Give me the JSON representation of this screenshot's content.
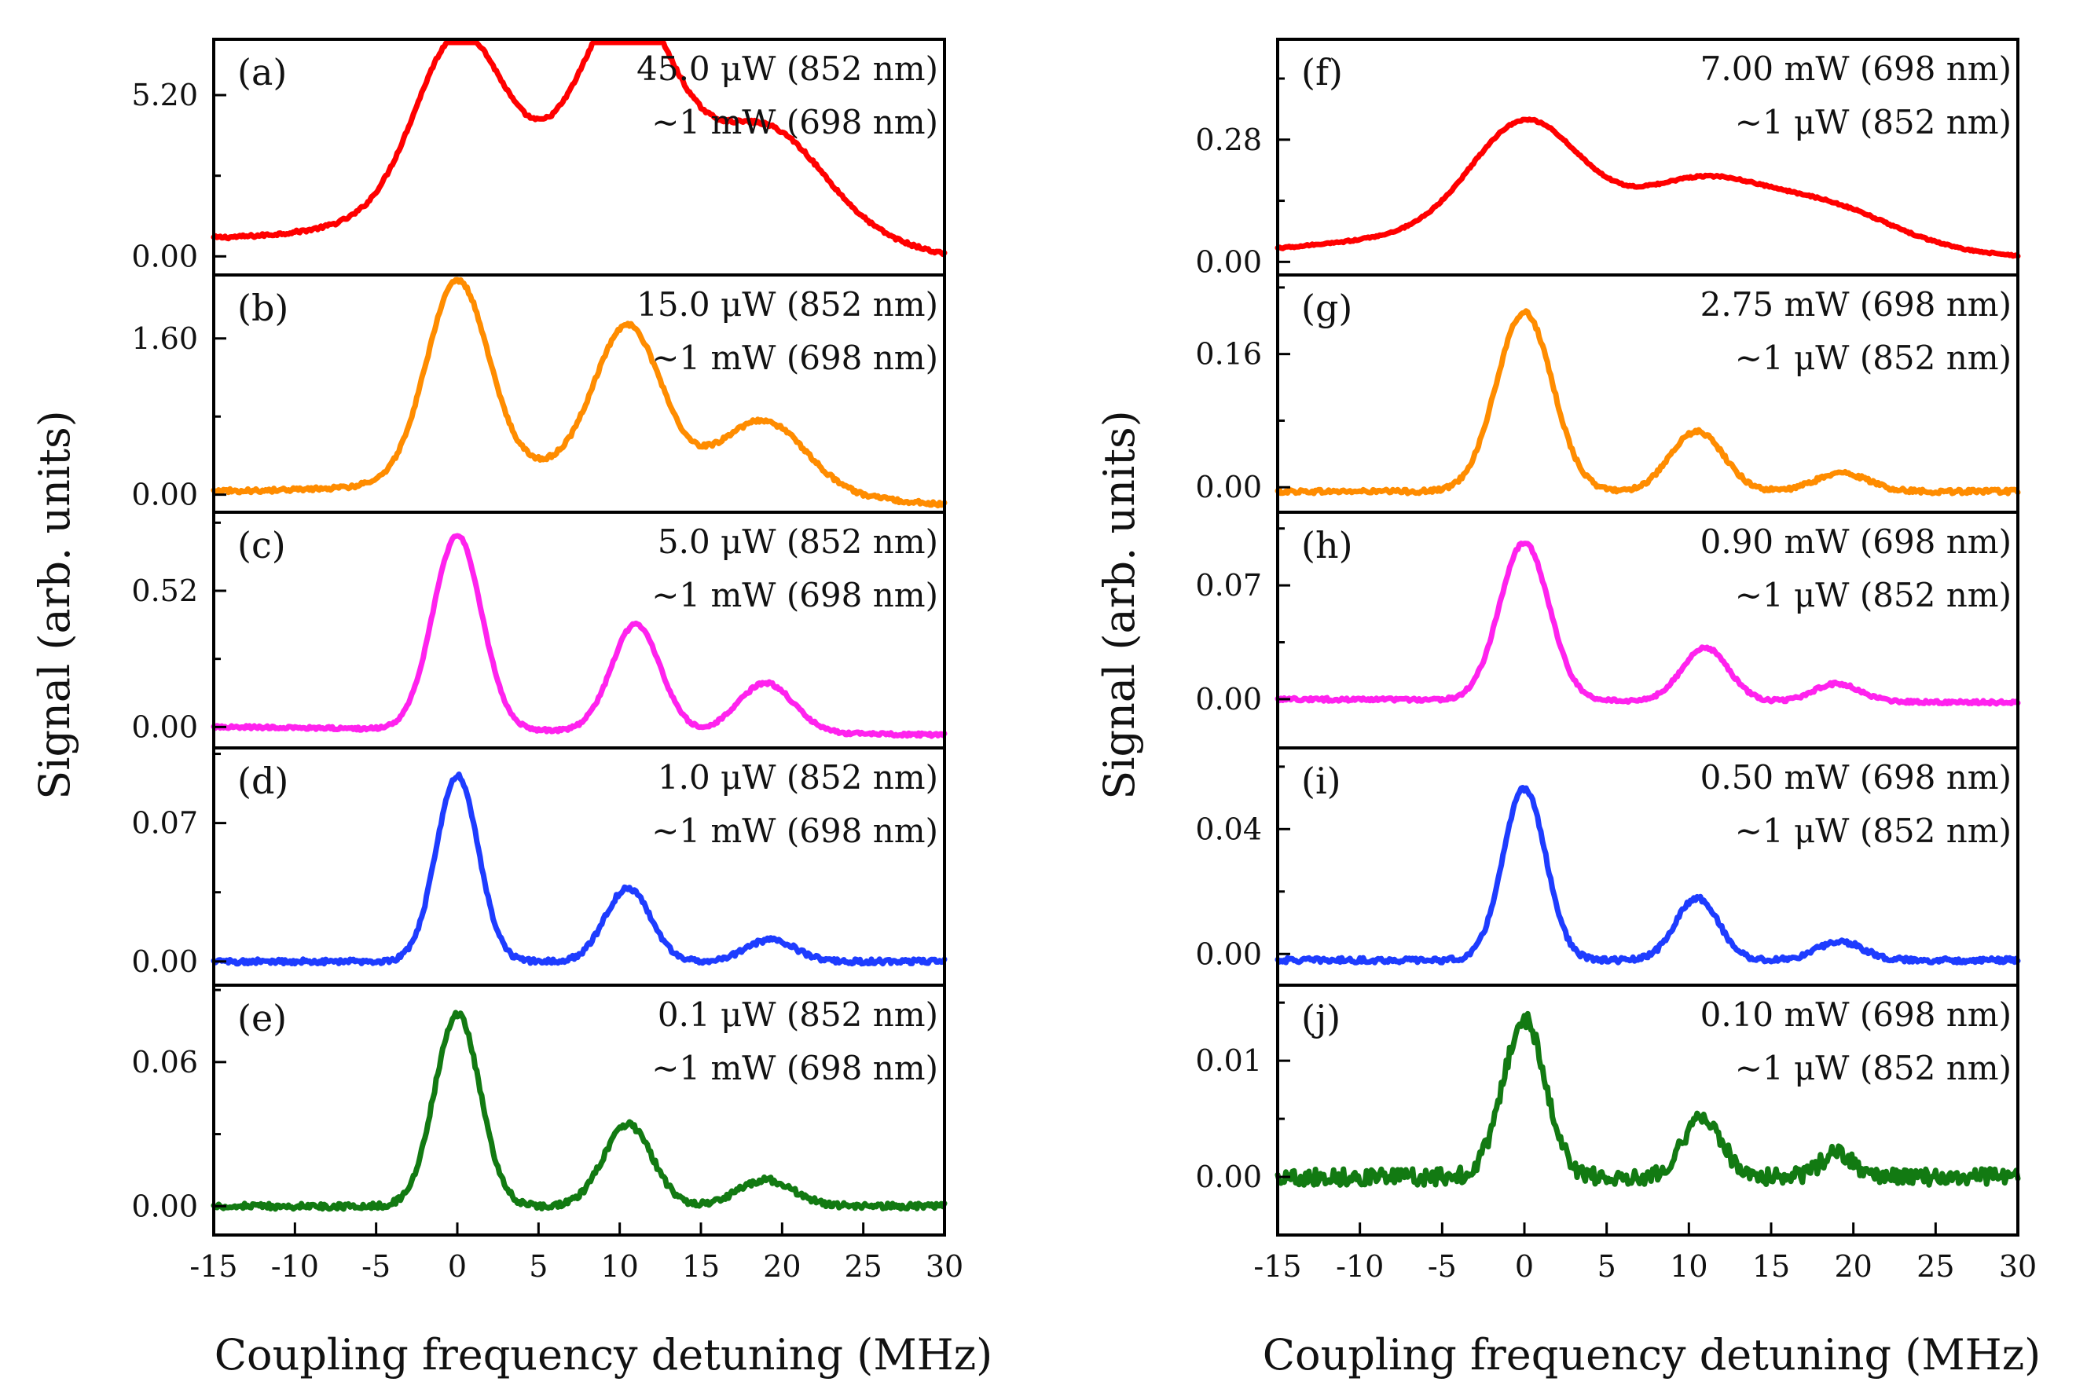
{
  "colors": {
    "red": "#ff0000",
    "orange": "#ff8c00",
    "magenta": "#ff22ee",
    "blue": "#1e3cff",
    "green": "#127a12"
  },
  "chart_data": [
    {
      "type": "line",
      "column": "left",
      "xlabel": "Coupling frequency detuning (MHz)",
      "ylabel": "Signal (arb. units)",
      "xlim": [
        -15,
        30
      ],
      "xticks": [
        "-15",
        "-10",
        "-5",
        "0",
        "5",
        "10",
        "15",
        "20",
        "25",
        "30"
      ],
      "panels": [
        {
          "label": "(a)",
          "line1": "45.0 μW (852 nm)",
          "line2": "~1 mW (698 nm)",
          "color": "red",
          "yticks": [
            "5.20",
            "0.00"
          ],
          "ytick_values": [
            5.2,
            0
          ],
          "ylim": [
            -0.6,
            7.0
          ],
          "peaks": [
            {
              "center": 0,
              "height": 5.0,
              "width": 2.6
            },
            {
              "center": 10.5,
              "height": 4.8,
              "width": 2.6
            },
            {
              "center": 19.5,
              "height": 2.2,
              "width": 3.2
            }
          ],
          "background": {
            "height": 3.4,
            "center": 10,
            "width": 9.5
          },
          "end_values": [
            0.5,
            -0.3
          ],
          "noise": 0.05
        },
        {
          "label": "(b)",
          "line1": "15.0 μW (852 nm)",
          "line2": "~1 mW (698 nm)",
          "color": "orange",
          "yticks": [
            "1.60",
            "0.00"
          ],
          "ytick_values": [
            1.6,
            0
          ],
          "ylim": [
            -0.18,
            2.25
          ],
          "peaks": [
            {
              "center": 0,
              "height": 2.0,
              "width": 1.9
            },
            {
              "center": 10.5,
              "height": 1.45,
              "width": 2.0
            },
            {
              "center": 19.0,
              "height": 0.65,
              "width": 2.5
            }
          ],
          "background": {
            "height": 0.35,
            "center": 9,
            "width": 9
          },
          "end_values": [
            0.03,
            -0.12
          ],
          "noise": 0.02
        },
        {
          "label": "(c)",
          "line1": "5.0 μW (852 nm)",
          "line2": "~1 mW (698 nm)",
          "color": "magenta",
          "yticks": [
            "0.52",
            "0.00"
          ],
          "ytick_values": [
            0.52,
            0
          ],
          "ylim": [
            -0.08,
            0.82
          ],
          "peaks": [
            {
              "center": 0,
              "height": 0.74,
              "width": 1.5
            },
            {
              "center": 11.0,
              "height": 0.41,
              "width": 1.5
            },
            {
              "center": 19.0,
              "height": 0.19,
              "width": 1.7
            }
          ],
          "background": {
            "height": 0.0,
            "center": 9,
            "width": 9
          },
          "end_values": [
            0.0,
            -0.03
          ],
          "noise": 0.006
        },
        {
          "label": "(d)",
          "line1": "1.0 μW (852 nm)",
          "line2": "~1 mW (698 nm)",
          "color": "blue",
          "yticks": [
            "0.07",
            "0.00"
          ],
          "ytick_values": [
            0.07,
            0
          ],
          "ylim": [
            -0.012,
            0.108
          ],
          "peaks": [
            {
              "center": 0,
              "height": 0.094,
              "width": 1.3
            },
            {
              "center": 10.5,
              "height": 0.037,
              "width": 1.4
            },
            {
              "center": 19.3,
              "height": 0.011,
              "width": 1.5
            }
          ],
          "background": {
            "height": 0.0,
            "center": 9,
            "width": 9
          },
          "end_values": [
            0.0,
            0.0
          ],
          "noise": 0.0012
        },
        {
          "label": "(e)",
          "line1": "0.1 μW (852 nm)",
          "line2": "~1 mW (698 nm)",
          "color": "green",
          "yticks": [
            "0.06",
            "0.00"
          ],
          "ytick_values": [
            0.06,
            0
          ],
          "ylim": [
            -0.012,
            0.092
          ],
          "peaks": [
            {
              "center": 0,
              "height": 0.08,
              "width": 1.4
            },
            {
              "center": 10.5,
              "height": 0.034,
              "width": 1.5
            },
            {
              "center": 19.0,
              "height": 0.011,
              "width": 1.7
            }
          ],
          "background": {
            "height": 0.0,
            "center": 9,
            "width": 9
          },
          "end_values": [
            0.0,
            0.0
          ],
          "noise": 0.0012
        }
      ]
    },
    {
      "type": "line",
      "column": "right",
      "xlabel": "Coupling frequency detuning (MHz)",
      "ylabel": "Signal (arb. units)",
      "xlim": [
        -15,
        30
      ],
      "xticks": [
        "-15",
        "-10",
        "-5",
        "0",
        "5",
        "10",
        "15",
        "20",
        "25",
        "30"
      ],
      "panels": [
        {
          "label": "(f)",
          "line1": "7.00 mW (698 nm)",
          "line2": "~1 μW (852 nm)",
          "color": "red",
          "yticks": [
            "0.28",
            "0.00"
          ],
          "ytick_values": [
            0.28,
            0
          ],
          "ylim": [
            -0.03,
            0.51
          ],
          "peaks": [
            {
              "center": 0,
              "height": 0.23,
              "width": 3.2
            },
            {
              "center": 11.0,
              "height": 0.09,
              "width": 3.5
            },
            {
              "center": 18.5,
              "height": 0.07,
              "width": 3.8
            }
          ],
          "background": {
            "height": 0.1,
            "center": 6,
            "width": 12
          },
          "end_values": [
            0.01,
            0.0
          ],
          "noise": 0.002
        },
        {
          "label": "(g)",
          "line1": "2.75 mW (698 nm)",
          "line2": "~1 μW (852 nm)",
          "color": "orange",
          "yticks": [
            "0.16",
            "0.00"
          ],
          "ytick_values": [
            0.16,
            0
          ],
          "ylim": [
            -0.03,
            0.255
          ],
          "peaks": [
            {
              "center": 0,
              "height": 0.215,
              "width": 1.7
            },
            {
              "center": 10.5,
              "height": 0.072,
              "width": 1.6
            },
            {
              "center": 19.3,
              "height": 0.022,
              "width": 1.6
            }
          ],
          "background": {
            "height": 0.0,
            "center": 9,
            "width": 9
          },
          "end_values": [
            -0.005,
            -0.005
          ],
          "noise": 0.0025
        },
        {
          "label": "(h)",
          "line1": "0.90 mW (698 nm)",
          "line2": "~1 μW (852 nm)",
          "color": "magenta",
          "yticks": [
            "0.07",
            "0.00"
          ],
          "ytick_values": [
            0.07,
            0
          ],
          "ylim": [
            -0.03,
            0.115
          ],
          "peaks": [
            {
              "center": 0,
              "height": 0.097,
              "width": 1.5
            },
            {
              "center": 11.0,
              "height": 0.033,
              "width": 1.4
            },
            {
              "center": 19.0,
              "height": 0.011,
              "width": 1.4
            }
          ],
          "background": {
            "height": 0.0,
            "center": 9,
            "width": 9
          },
          "end_values": [
            0.0,
            -0.002
          ],
          "noise": 0.001
        },
        {
          "label": "(i)",
          "line1": "0.50 mW (698 nm)",
          "line2": "~1 μW (852 nm)",
          "color": "blue",
          "yticks": [
            "0.04",
            "0.00"
          ],
          "ytick_values": [
            0.04,
            0
          ],
          "ylim": [
            -0.01,
            0.066
          ],
          "peaks": [
            {
              "center": 0,
              "height": 0.055,
              "width": 1.3
            },
            {
              "center": 10.5,
              "height": 0.02,
              "width": 1.3
            },
            {
              "center": 19.2,
              "height": 0.006,
              "width": 1.4
            }
          ],
          "background": {
            "height": 0.0,
            "center": 9,
            "width": 9
          },
          "end_values": [
            -0.002,
            -0.002
          ],
          "noise": 0.0008
        },
        {
          "label": "(j)",
          "line1": "0.10 mW (698 nm)",
          "line2": "~1 μW (852 nm)",
          "color": "green",
          "yticks": [
            "0.01",
            "0.00"
          ],
          "ytick_values": [
            0.01,
            0
          ],
          "ylim": [
            -0.005,
            0.0165
          ],
          "peaks": [
            {
              "center": 0,
              "height": 0.0135,
              "width": 1.3
            },
            {
              "center": 10.8,
              "height": 0.005,
              "width": 1.2
            },
            {
              "center": 19.0,
              "height": 0.002,
              "width": 1.0
            }
          ],
          "background": {
            "height": 0.0,
            "center": 9,
            "width": 9
          },
          "end_values": [
            0.0,
            0.0
          ],
          "noise": 0.0007
        }
      ]
    }
  ]
}
